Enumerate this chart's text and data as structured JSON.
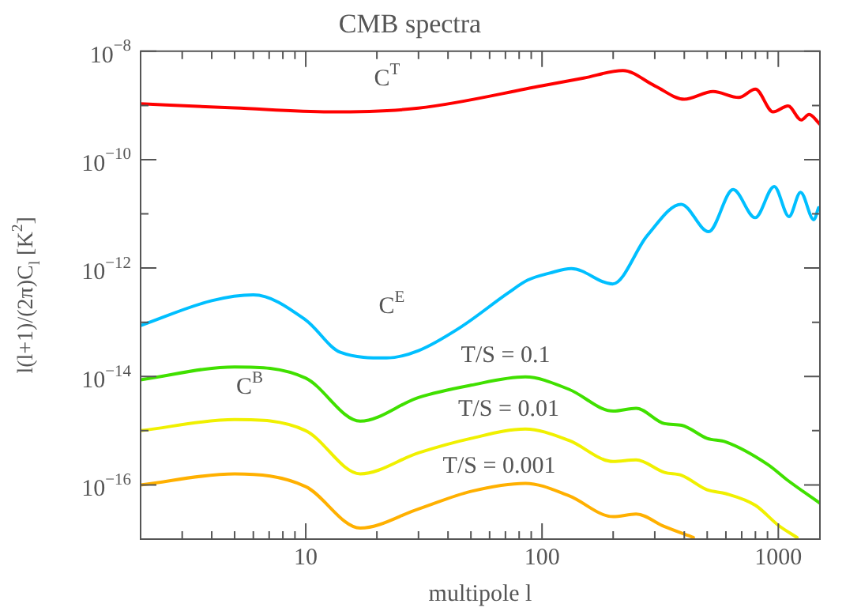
{
  "chart_data": {
    "type": "line",
    "title": "CMB spectra",
    "xlabel": "multipole l",
    "ylabel": "l(l+1)/(2π)C$_{l}$ [K$^{2}$]",
    "log": "xy",
    "grid": false,
    "legend": false,
    "marker": "none",
    "line_style": "solid",
    "xlim": [
      2,
      1500
    ],
    "ylim": [
      1e-17,
      1e-08
    ],
    "xticks": [
      {
        "value": 2,
        "label": null
      },
      {
        "value": 3,
        "label": null
      },
      {
        "value": 4,
        "label": null
      },
      {
        "value": 5,
        "label": null
      },
      {
        "value": 6,
        "label": null
      },
      {
        "value": 7,
        "label": null
      },
      {
        "value": 8,
        "label": null
      },
      {
        "value": 9,
        "label": null
      },
      10,
      {
        "value": 20,
        "label": null
      },
      {
        "value": 30,
        "label": null
      },
      {
        "value": 40,
        "label": null
      },
      {
        "value": 50,
        "label": null
      },
      {
        "value": 60,
        "label": null
      },
      {
        "value": 70,
        "label": null
      },
      {
        "value": 80,
        "label": null
      },
      {
        "value": 90,
        "label": null
      },
      100,
      {
        "value": 200,
        "label": null
      },
      {
        "value": 300,
        "label": null
      },
      {
        "value": 400,
        "label": null
      },
      {
        "value": 500,
        "label": null
      },
      {
        "value": 600,
        "label": null
      },
      {
        "value": 700,
        "label": null
      },
      {
        "value": 800,
        "label": null
      },
      {
        "value": 900,
        "label": null
      },
      1000
    ],
    "yticks": [
      {
        "value": 1e-17,
        "label": null
      },
      {
        "value": 1e-16,
        "label": "10$^{−16}$"
      },
      {
        "value": 1e-15,
        "label": null
      },
      {
        "value": 1e-14,
        "label": "10$^{−14}$"
      },
      {
        "value": 1e-13,
        "label": null
      },
      {
        "value": 1e-12,
        "label": "10$^{−12}$"
      },
      {
        "value": 1e-11,
        "label": null
      },
      {
        "value": 1e-10,
        "label": "10$^{−10}$"
      },
      {
        "value": 1e-09,
        "label": null
      },
      {
        "value": 1e-08,
        "label": "10$^{−8}$"
      }
    ],
    "series": [
      {
        "name": "C$^{T}$",
        "color": "#ff0000",
        "x": [
          2,
          5,
          12.6,
          30,
          100,
          150,
          220,
          300,
          400,
          530,
          680,
          800,
          950,
          1100,
          1250,
          1350,
          1500
        ],
        "values": [
          1.07e-09,
          9e-10,
          7.6e-10,
          8.9e-10,
          2.3e-09,
          3.2e-09,
          4.4e-09,
          2.3e-09,
          1.3e-09,
          1.8e-09,
          1.4e-09,
          2e-09,
          7.6e-10,
          9.8e-10,
          5.4e-10,
          6.8e-10,
          4.5e-10
        ]
      },
      {
        "name": "C$^{E}$",
        "color": "#00bfff",
        "x": [
          2,
          4,
          6,
          10,
          14,
          22,
          30,
          45,
          72,
          87,
          108,
          133,
          199,
          279,
          388,
          507,
          644,
          798,
          961,
          1110,
          1242,
          1413,
          1480
        ],
        "values": [
          8.7e-14,
          2.5e-13,
          3.2e-13,
          1.1e-13,
          2.8e-14,
          2.2e-14,
          3e-14,
          8e-14,
          3.5e-13,
          6e-13,
          8.1e-13,
          9.8e-13,
          5.1e-13,
          4e-12,
          1.5e-11,
          4.7e-12,
          2.8e-11,
          8.5e-12,
          3.2e-11,
          8.9e-12,
          2.5e-11,
          7.8e-12,
          1.3e-11
        ]
      },
      {
        "name": "T/S = 0.1",
        "color": "#40e000",
        "x": [
          2,
          5,
          10,
          17,
          30,
          50,
          85,
          130,
          200,
          250,
          330,
          390,
          500,
          600,
          900,
          1100,
          1500
        ],
        "values": [
          8.7e-15,
          1.5e-14,
          9.3e-15,
          1.5e-15,
          4.1e-15,
          6.9e-15,
          9.8e-15,
          5.8e-15,
          2.3e-15,
          2.6e-15,
          1.35e-15,
          1.26e-15,
          7.2e-16,
          6.2e-16,
          2.4e-16,
          1.2e-16,
          4.6e-17
        ]
      },
      {
        "name": "T/S = 0.01",
        "color": "#f0f000",
        "x": [
          2,
          5,
          10,
          17,
          30,
          50,
          85,
          130,
          200,
          250,
          330,
          390,
          500,
          600,
          800,
          1000,
          1200
        ],
        "values": [
          1e-15,
          1.6e-15,
          1e-15,
          1.6e-16,
          3.9e-16,
          7.2e-16,
          1.07e-15,
          6.6e-16,
          2.7e-16,
          2.9e-16,
          1.7e-16,
          1.5e-16,
          8.1e-17,
          6.9e-17,
          4.2e-17,
          1.8e-17,
          1.07e-17
        ]
      },
      {
        "name": "T/S = 0.001",
        "color": "#ffb000",
        "x": [
          2,
          5,
          10,
          17,
          30,
          50,
          85,
          130,
          200,
          250,
          330,
          437
        ],
        "values": [
          1e-16,
          1.6e-16,
          9.3e-17,
          1.6e-17,
          3.6e-17,
          7.6e-17,
          1.07e-16,
          6.3e-17,
          2.6e-17,
          2.9e-17,
          1.7e-17,
          1.07e-17
        ]
      }
    ],
    "annotations": [
      "C$^{B}$"
    ]
  }
}
